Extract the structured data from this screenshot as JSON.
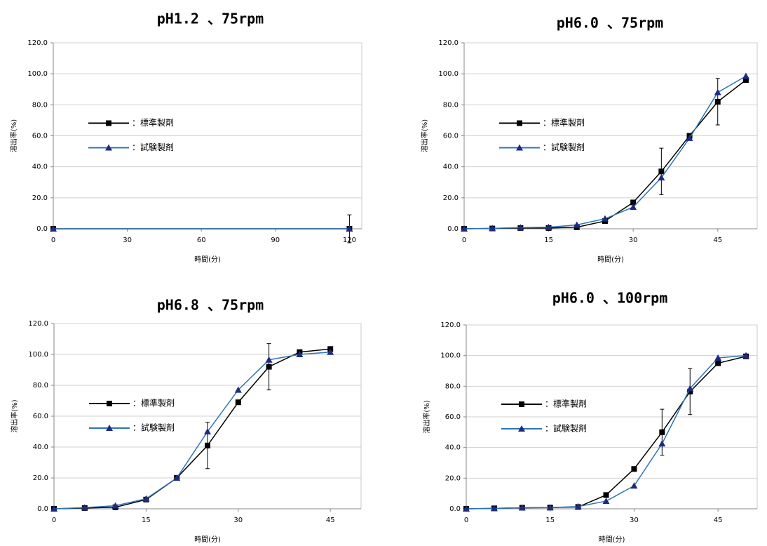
{
  "chart_data": [
    {
      "type": "line",
      "title": "pH1.2 、75rpm",
      "x_label": "時間(分)",
      "y_label": "溶出率(%)",
      "x": [
        0,
        120
      ],
      "xlim": [
        0,
        125
      ],
      "xticks": [
        0,
        30,
        60,
        90,
        120
      ],
      "ylim": [
        0,
        120
      ],
      "yticks": [
        {
          "value": 0,
          "label": "0.0"
        },
        {
          "value": 20,
          "label": "20.0"
        },
        {
          "value": 40,
          "label": "40.0"
        },
        {
          "value": 60,
          "label": "60.0"
        },
        {
          "value": 80,
          "label": "80.0"
        },
        {
          "value": 100,
          "label": "100.0"
        },
        {
          "value": 120,
          "label": "120.0"
        }
      ],
      "grid": true,
      "legend": "center left",
      "series": [
        {
          "name": "：標準製剤",
          "color": "#000000",
          "marker_color": "#000000",
          "marker": "square",
          "values": [
            0,
            0
          ],
          "errors": [
            null,
            9
          ]
        },
        {
          "name": "：試験製剤",
          "color": "#2e75b6",
          "marker_color": "#1f2a80",
          "marker": "triangle",
          "values": [
            0,
            0
          ]
        }
      ]
    },
    {
      "type": "line",
      "title": "pH6.0 、75rpm",
      "x_label": "時間(分)",
      "y_label": "溶出率(%)",
      "x": [
        0,
        5,
        10,
        15,
        20,
        25,
        30,
        35,
        40,
        45,
        50
      ],
      "xlim": [
        0,
        52
      ],
      "xticks": [
        0,
        15,
        30,
        45
      ],
      "ylim": [
        0,
        120
      ],
      "yticks": [
        {
          "value": 0,
          "label": "0.0"
        },
        {
          "value": 20,
          "label": "20.0"
        },
        {
          "value": 40,
          "label": "40.0"
        },
        {
          "value": 60,
          "label": "60.0"
        },
        {
          "value": 80,
          "label": "80.0"
        },
        {
          "value": 100,
          "label": "100.0"
        },
        {
          "value": 120,
          "label": "120.0"
        }
      ],
      "grid": true,
      "legend": "center left",
      "series": [
        {
          "name": "：標準製剤",
          "color": "#000000",
          "marker_color": "#000000",
          "marker": "square",
          "values": [
            0,
            0.2,
            0.5,
            0.5,
            1,
            5,
            17,
            37,
            60,
            82,
            96
          ],
          "errors": [
            null,
            null,
            null,
            null,
            null,
            null,
            null,
            15,
            null,
            15,
            null
          ]
        },
        {
          "name": "：試験製剤",
          "color": "#2e75b6",
          "marker_color": "#1f2a80",
          "marker": "triangle",
          "values": [
            0,
            0.3,
            0.8,
            1,
            2.5,
            6.5,
            14,
            33,
            58.5,
            88,
            98.5
          ]
        }
      ]
    },
    {
      "type": "line",
      "title": "pH6.8 、75rpm",
      "x_label": "時間(分)",
      "y_label": "溶出率(%)",
      "x": [
        0,
        5,
        10,
        15,
        20,
        25,
        30,
        35,
        40,
        45
      ],
      "xlim": [
        0,
        50
      ],
      "xticks": [
        0,
        15,
        30,
        45
      ],
      "ylim": [
        0,
        120
      ],
      "yticks": [
        {
          "value": 0,
          "label": "0.0"
        },
        {
          "value": 20,
          "label": "20.0"
        },
        {
          "value": 40,
          "label": "40.0"
        },
        {
          "value": 60,
          "label": "60.0"
        },
        {
          "value": 80,
          "label": "80.0"
        },
        {
          "value": 100,
          "label": "100.0"
        },
        {
          "value": 120,
          "label": "120.0"
        }
      ],
      "grid": true,
      "legend": "center left",
      "series": [
        {
          "name": "：標準製剤",
          "color": "#000000",
          "marker_color": "#000000",
          "marker": "square",
          "values": [
            0,
            0.5,
            1,
            6,
            20,
            41,
            69,
            92,
            101.5,
            103.5
          ],
          "errors": [
            null,
            null,
            null,
            null,
            null,
            15,
            null,
            15,
            null,
            null
          ]
        },
        {
          "name": "：試験製剤",
          "color": "#2e75b6",
          "marker_color": "#1f2a80",
          "marker": "triangle",
          "values": [
            0,
            0.8,
            2,
            6.5,
            20,
            50,
            77,
            96.5,
            100,
            101.5
          ]
        }
      ]
    },
    {
      "type": "line",
      "title": "pH6.0 、100rpm",
      "x_label": "時間(分)",
      "y_label": "溶出率(%)",
      "x": [
        0,
        5,
        10,
        15,
        20,
        25,
        30,
        35,
        40,
        45,
        50
      ],
      "xlim": [
        0,
        52
      ],
      "xticks": [
        0,
        15,
        30,
        45
      ],
      "ylim": [
        0,
        120
      ],
      "yticks": [
        {
          "value": 0,
          "label": "0.0"
        },
        {
          "value": 20,
          "label": "20.0"
        },
        {
          "value": 40,
          "label": "40.0"
        },
        {
          "value": 60,
          "label": "60.0"
        },
        {
          "value": 80,
          "label": "80.0"
        },
        {
          "value": 100,
          "label": "100.0"
        },
        {
          "value": 120,
          "label": "120.0"
        }
      ],
      "grid": true,
      "legend": "center left",
      "series": [
        {
          "name": "：標準製剤",
          "color": "#000000",
          "marker_color": "#000000",
          "marker": "square",
          "values": [
            0,
            0.3,
            0.7,
            0.8,
            1.2,
            9,
            26,
            50,
            76.5,
            95,
            99.5
          ],
          "errors": [
            null,
            null,
            null,
            null,
            null,
            null,
            null,
            15,
            15,
            null,
            null
          ]
        },
        {
          "name": "：試験製剤",
          "color": "#2e75b6",
          "marker_color": "#1f2a80",
          "marker": "triangle",
          "values": [
            0,
            0.3,
            0.7,
            0.8,
            1.5,
            5,
            15,
            42.5,
            78.5,
            98.5,
            100
          ]
        }
      ]
    }
  ]
}
